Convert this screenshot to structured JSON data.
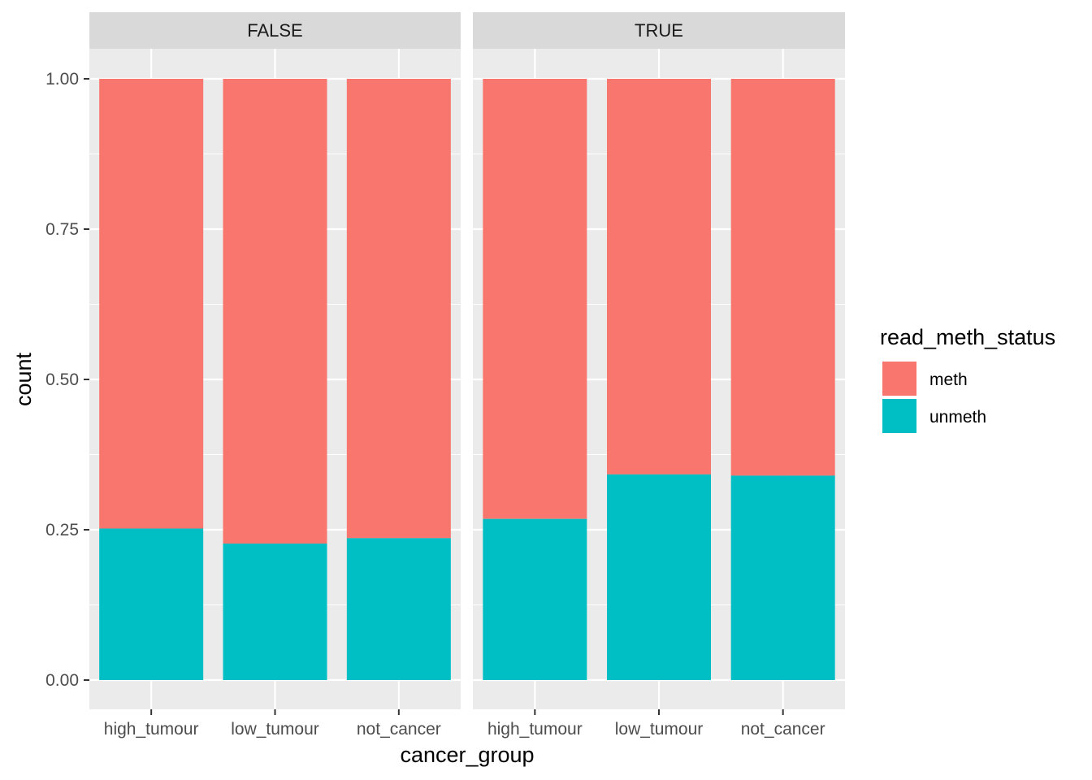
{
  "chart_data": {
    "type": "bar",
    "stacked": true,
    "facet_variable_values": [
      "FALSE",
      "TRUE"
    ],
    "categories": [
      "high_tumour",
      "low_tumour",
      "not_cancer"
    ],
    "xlabel": "cancer_group",
    "ylabel": "count",
    "ylim": [
      0,
      1.0
    ],
    "y_ticks": [
      "0.00",
      "0.25",
      "0.50",
      "0.75",
      "1.00"
    ],
    "grid": true,
    "legend": {
      "title": "read_meth_status",
      "placement": "right",
      "entries": [
        {
          "label": "meth",
          "color": "#F8766D"
        },
        {
          "label": "unmeth",
          "color": "#00BFC4"
        }
      ]
    },
    "facets": [
      {
        "label": "FALSE",
        "series": [
          {
            "name": "unmeth",
            "values": [
              0.252,
              0.227,
              0.236
            ]
          },
          {
            "name": "meth",
            "values": [
              0.748,
              0.773,
              0.764
            ]
          }
        ]
      },
      {
        "label": "TRUE",
        "series": [
          {
            "name": "unmeth",
            "values": [
              0.268,
              0.342,
              0.34
            ]
          },
          {
            "name": "meth",
            "values": [
              0.732,
              0.658,
              0.66
            ]
          }
        ]
      }
    ]
  },
  "colors": {
    "panel_bg": "#EBEBEB",
    "strip_bg": "#D9D9D9",
    "grid": "#FFFFFF",
    "meth": "#F8766D",
    "unmeth": "#00BFC4"
  }
}
